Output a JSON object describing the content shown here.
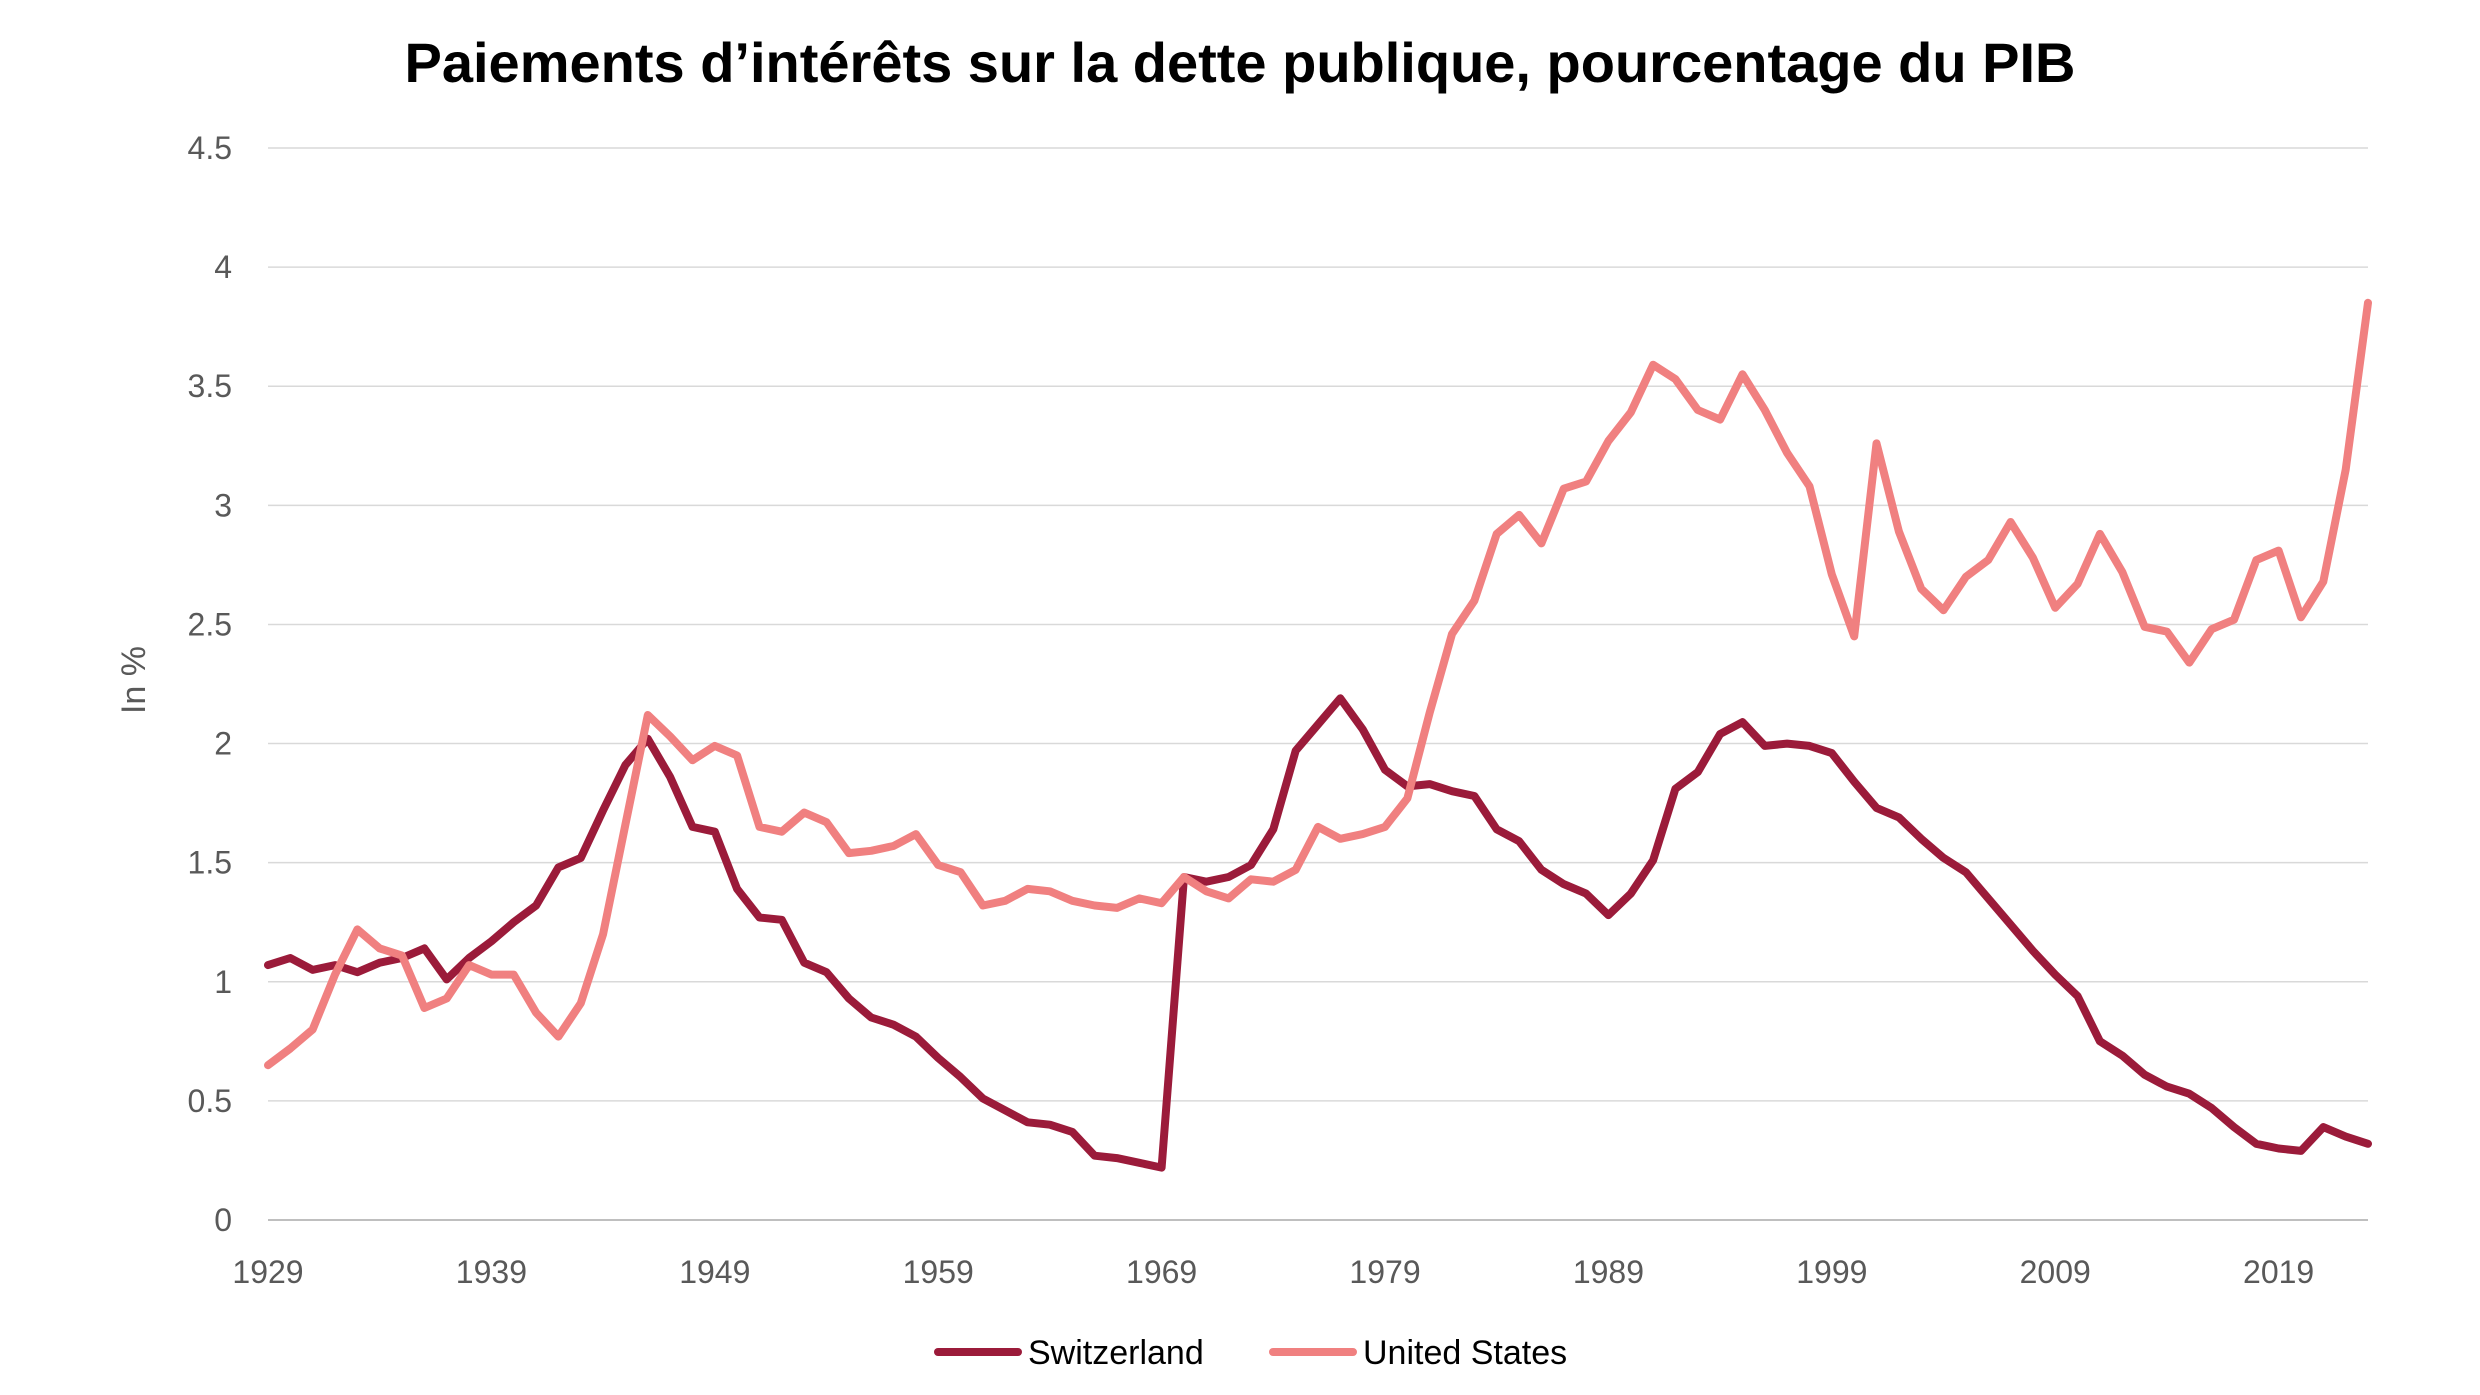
{
  "chart_data": {
    "type": "line",
    "title": "Paiements d’intérêts sur la dette publique, pourcentage du PIB",
    "xlabel": "",
    "ylabel": "In %",
    "ylim": [
      0,
      4.5
    ],
    "yticks": [
      "0",
      "0.5",
      "1",
      "1.5",
      "2",
      "2.5",
      "3",
      "3.5",
      "4",
      "4.5"
    ],
    "xlim": [
      1929,
      2023
    ],
    "xticks": [
      "1929",
      "1939",
      "1949",
      "1959",
      "1969",
      "1979",
      "1989",
      "1999",
      "2009",
      "2019"
    ],
    "grid": true,
    "legend_position": "bottom",
    "colors": {
      "Switzerland": "#9B1B3A",
      "United States": "#F08080"
    },
    "series": [
      {
        "name": "Switzerland",
        "x": [
          1929,
          1930,
          1931,
          1932,
          1933,
          1934,
          1935,
          1936,
          1937,
          1938,
          1939,
          1940,
          1941,
          1942,
          1943,
          1944,
          1945,
          1946,
          1947,
          1948,
          1949,
          1950,
          1951,
          1952,
          1953,
          1954,
          1955,
          1956,
          1957,
          1958,
          1959,
          1960,
          1961,
          1962,
          1963,
          1964,
          1965,
          1966,
          1967,
          1968,
          1969,
          1970,
          1971,
          1972,
          1973,
          1974,
          1975,
          1976,
          1977,
          1978,
          1979,
          1980,
          1981,
          1982,
          1983,
          1984,
          1985,
          1986,
          1987,
          1988,
          1989,
          1990,
          1991,
          1992,
          1993,
          1994,
          1995,
          1996,
          1997,
          1998,
          1999,
          2000,
          2001,
          2002,
          2003,
          2004,
          2005,
          2006,
          2007,
          2008,
          2009,
          2010,
          2011,
          2012,
          2013,
          2014,
          2015,
          2016,
          2017,
          2018,
          2019,
          2020,
          2021,
          2022,
          2023
        ],
        "values": [
          1.07,
          1.1,
          1.05,
          1.07,
          1.04,
          1.08,
          1.1,
          1.14,
          1.01,
          1.1,
          1.17,
          1.25,
          1.32,
          1.48,
          1.52,
          1.72,
          1.91,
          2.02,
          1.86,
          1.65,
          1.63,
          1.39,
          1.27,
          1.26,
          1.08,
          1.04,
          0.93,
          0.85,
          0.82,
          0.77,
          0.68,
          0.6,
          0.51,
          0.46,
          0.41,
          0.4,
          0.37,
          0.27,
          0.26,
          0.24,
          0.22,
          1.44,
          1.42,
          1.44,
          1.49,
          1.64,
          1.97,
          2.08,
          2.19,
          2.06,
          1.89,
          1.82,
          1.83,
          1.8,
          1.78,
          1.64,
          1.59,
          1.47,
          1.41,
          1.37,
          1.28,
          1.37,
          1.51,
          1.81,
          1.88,
          2.04,
          2.09,
          1.99,
          2.0,
          1.99,
          1.96,
          1.84,
          1.73,
          1.69,
          1.6,
          1.52,
          1.46,
          1.35,
          1.24,
          1.13,
          1.03,
          0.94,
          0.75,
          0.69,
          0.61,
          0.56,
          0.53,
          0.47,
          0.39,
          0.32,
          0.3,
          0.29,
          0.39,
          0.35,
          0.32
        ]
      },
      {
        "name": "United States",
        "x": [
          1929,
          1930,
          1931,
          1932,
          1933,
          1934,
          1935,
          1936,
          1937,
          1938,
          1939,
          1940,
          1941,
          1942,
          1943,
          1944,
          1945,
          1946,
          1947,
          1948,
          1949,
          1950,
          1951,
          1952,
          1953,
          1954,
          1955,
          1956,
          1957,
          1958,
          1959,
          1960,
          1961,
          1962,
          1963,
          1964,
          1965,
          1966,
          1967,
          1968,
          1969,
          1970,
          1971,
          1972,
          1973,
          1974,
          1975,
          1976,
          1977,
          1978,
          1979,
          1980,
          1981,
          1982,
          1983,
          1984,
          1985,
          1986,
          1987,
          1988,
          1989,
          1990,
          1991,
          1992,
          1993,
          1994,
          1995,
          1996,
          1997,
          1998,
          1999,
          2000,
          2001,
          2002,
          2003,
          2004,
          2005,
          2006,
          2007,
          2008,
          2009,
          2010,
          2011,
          2012,
          2013,
          2014,
          2015,
          2016,
          2017,
          2018,
          2019,
          2020,
          2021,
          2022,
          2023
        ],
        "values": [
          0.65,
          0.72,
          0.8,
          1.03,
          1.22,
          1.14,
          1.11,
          0.89,
          0.93,
          1.07,
          1.03,
          1.03,
          0.87,
          0.77,
          0.91,
          1.2,
          1.66,
          2.12,
          2.03,
          1.93,
          1.99,
          1.95,
          1.65,
          1.63,
          1.71,
          1.67,
          1.54,
          1.55,
          1.57,
          1.62,
          1.49,
          1.46,
          1.32,
          1.34,
          1.39,
          1.38,
          1.34,
          1.32,
          1.31,
          1.35,
          1.33,
          1.44,
          1.38,
          1.35,
          1.43,
          1.42,
          1.47,
          1.65,
          1.6,
          1.62,
          1.65,
          1.77,
          2.13,
          2.46,
          2.6,
          2.88,
          2.96,
          2.84,
          3.07,
          3.1,
          3.27,
          3.39,
          3.59,
          3.53,
          3.4,
          3.36,
          3.55,
          3.4,
          3.22,
          3.08,
          2.71,
          2.45,
          3.26,
          2.89,
          2.65,
          2.56,
          2.7,
          2.77,
          2.93,
          2.78,
          2.57,
          2.67,
          2.88,
          2.72,
          2.49,
          2.47,
          2.34,
          2.48,
          2.52,
          2.77,
          2.81,
          2.53,
          2.68,
          3.15,
          3.85
        ]
      }
    ]
  }
}
